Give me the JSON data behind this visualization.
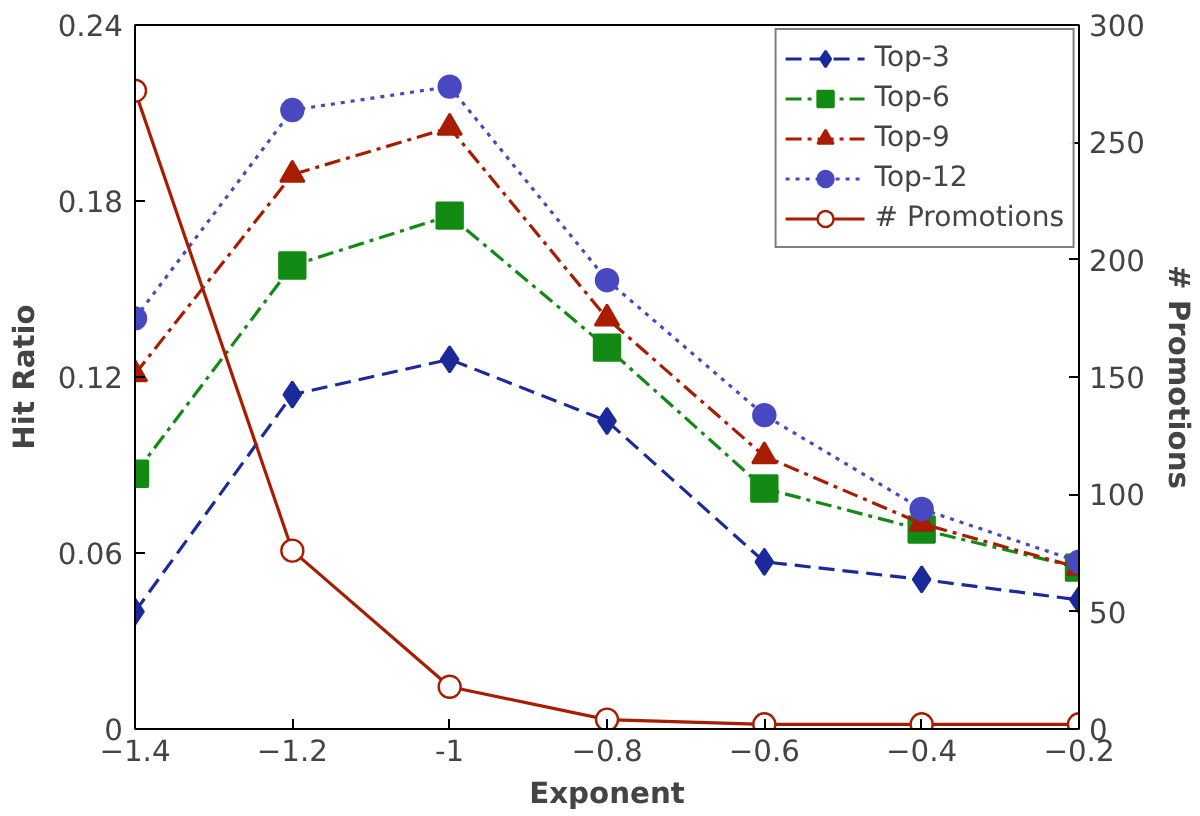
{
  "chart_data": {
    "type": "line",
    "xlabel": "Exponent",
    "ylabel": "Hit Ratio",
    "y2label": "# Promotions",
    "x": [
      -1.4,
      -1.2,
      -1.0,
      -0.8,
      -0.6,
      -0.4,
      -0.2
    ],
    "xlim": [
      -1.4,
      -0.2
    ],
    "xticks": [
      -1.4,
      -1.2,
      {
        "value": -1.0,
        "label": "-1"
      },
      -0.8,
      -0.6,
      -0.4,
      -0.2
    ],
    "ylim": [
      0,
      0.24
    ],
    "yticks": [
      {
        "value": 0,
        "label": "0"
      },
      0.06,
      0.12,
      0.18,
      0.24
    ],
    "y2lim": [
      0,
      300
    ],
    "y2ticks": [
      0,
      50,
      100,
      150,
      200,
      250,
      300
    ],
    "grid": false,
    "legend": "top right",
    "series": [
      {
        "name": "Top-3",
        "color": "#1a2a9a",
        "marker": "diamond",
        "line_style": "dashed",
        "values": [
          0.04,
          0.114,
          0.126,
          0.105,
          0.057,
          0.051,
          0.044
        ]
      },
      {
        "name": "Top-6",
        "color": "#138a13",
        "marker": "square",
        "line_style": "dashdot",
        "values": [
          0.087,
          0.158,
          0.175,
          0.13,
          0.082,
          0.068,
          0.055
        ]
      },
      {
        "name": "Top-9",
        "color": "#a81c00",
        "marker": "triangle",
        "line_style": "dashdot",
        "values": [
          0.121,
          0.189,
          0.205,
          0.14,
          0.093,
          0.07,
          0.055
        ]
      },
      {
        "name": "Top-12",
        "color": "#4848c0",
        "marker": "circle",
        "line_style": "dotted",
        "values": [
          0.14,
          0.211,
          0.219,
          0.153,
          0.107,
          0.075,
          0.057
        ]
      },
      {
        "name": "# Promotions",
        "color": "#a81c00",
        "marker": "circle",
        "line_style": "solid",
        "axis": "y2",
        "values": [
          272,
          76,
          18,
          4,
          2,
          2,
          2
        ]
      }
    ]
  }
}
